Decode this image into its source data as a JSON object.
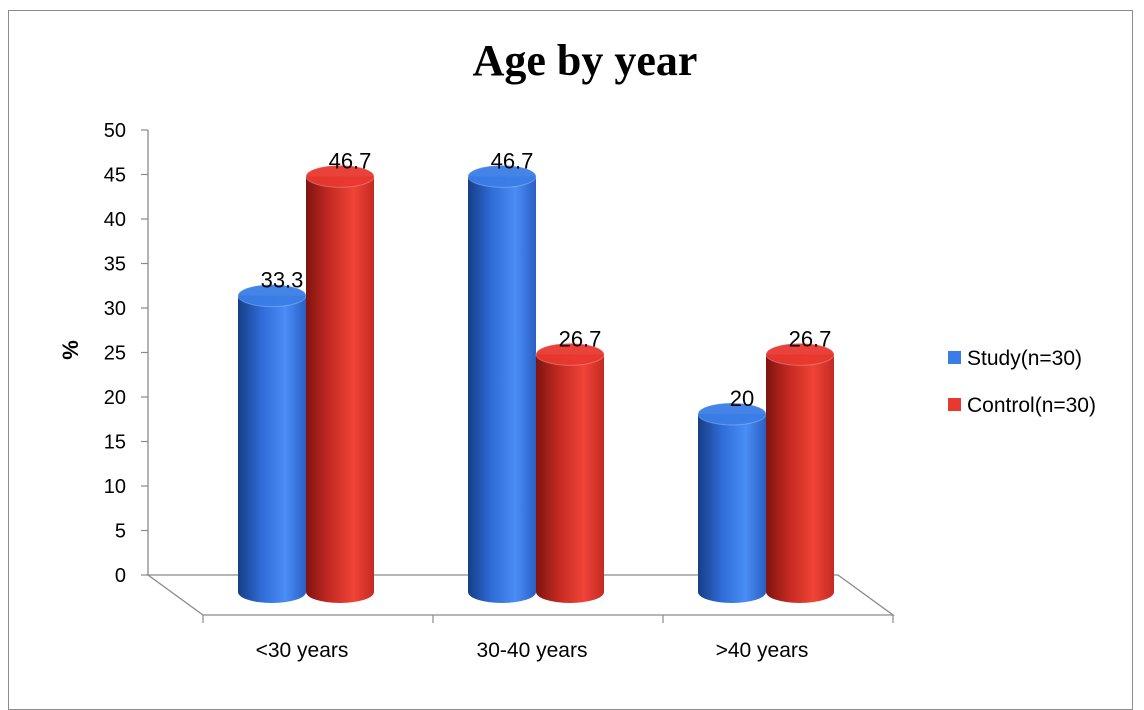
{
  "chart_data": {
    "type": "bar",
    "title": "Age by year",
    "ylabel": "%",
    "xlabel": "",
    "ylim": [
      0,
      50
    ],
    "yticks": [
      0,
      5,
      10,
      15,
      20,
      25,
      30,
      35,
      40,
      45,
      50
    ],
    "categories": [
      "<30 years",
      "30-40 years",
      ">40 years"
    ],
    "series": [
      {
        "name": "Study(n=30)",
        "values": [
          33.3,
          46.7,
          20
        ],
        "labels": [
          "33.3",
          "46.7",
          "20"
        ],
        "color": "#3a7de6"
      },
      {
        "name": "Control(n=30)",
        "values": [
          46.7,
          26.7,
          26.7
        ],
        "labels": [
          "46.7",
          "26.7",
          "26.7"
        ],
        "color": "#e8382f"
      }
    ],
    "legend": "right",
    "grid": false,
    "style": "3d-cylinder"
  }
}
